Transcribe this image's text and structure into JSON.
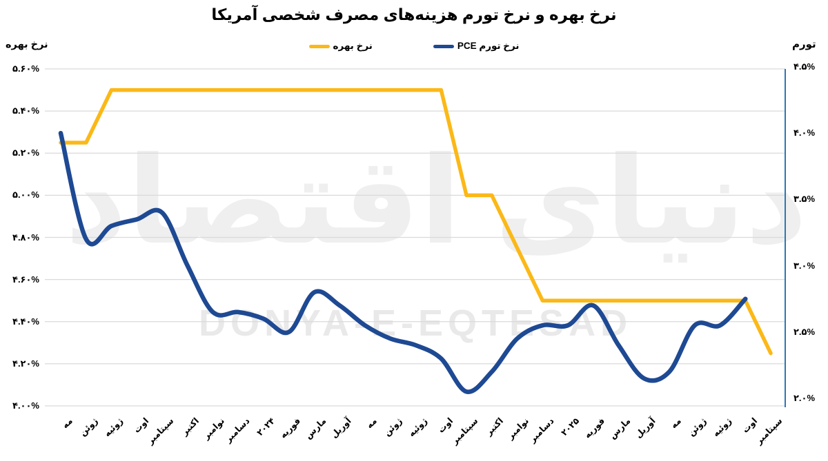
{
  "watermark": {
    "fa": "دنیای اقتصاد",
    "en": "DONYA-E-EQTESAD"
  },
  "colors": {
    "interest_rate_line": "#FBB817",
    "pce_line": "#1E4993",
    "gridline": "#D9D9D9",
    "right_axis_line": "#2E75B6",
    "text": "#000000",
    "watermark": "#ECECEC"
  },
  "chart_data": {
    "type": "line",
    "title": "نرخ بهره و نرخ تورم هزینه‌های مصرف شخصی آمریکا",
    "legend_position": "top",
    "grid": "horizontal",
    "categories": [
      "مه",
      "ژوئن",
      "ژوئیه",
      "اوت",
      "سپتامبر",
      "اکتبر",
      "نوامبر",
      "دسامبر",
      "۲۰۲۴",
      "فوریه",
      "مارس",
      "آوریل",
      "مه",
      "ژوئن",
      "ژوئیه",
      "اوت",
      "سپتامبر",
      "اکتبر",
      "نوامبر",
      "دسامبر",
      "۲۰۲۵",
      "فوریه",
      "مارس",
      "آوریل",
      "مه",
      "ژوئن",
      "ژوئیه",
      "اوت",
      "سپتامبر"
    ],
    "series": [
      {
        "name": "نرخ بهره",
        "axis": "left",
        "color": "#FBB817",
        "line": "straight",
        "values": [
          5.25,
          5.25,
          5.5,
          5.5,
          5.5,
          5.5,
          5.5,
          5.5,
          5.5,
          5.5,
          5.5,
          5.5,
          5.5,
          5.5,
          5.5,
          5.5,
          5.0,
          5.0,
          4.75,
          4.5,
          4.5,
          4.5,
          4.5,
          4.5,
          4.5,
          4.5,
          4.5,
          4.5,
          4.25
        ]
      },
      {
        "name": "نرخ تورم PCE",
        "axis": "right",
        "color": "#1E4993",
        "line": "smooth",
        "values": [
          4.0,
          3.2,
          3.3,
          3.35,
          3.4,
          3.0,
          2.65,
          2.65,
          2.6,
          2.5,
          2.8,
          2.7,
          2.55,
          2.45,
          2.4,
          2.3,
          2.05,
          2.2,
          2.45,
          2.55,
          2.55,
          2.7,
          2.4,
          2.15,
          2.2,
          2.55,
          2.55,
          2.75,
          null
        ]
      }
    ],
    "left_axis": {
      "title": "نرخ بهره",
      "range": [
        4.0,
        5.6
      ],
      "tick_values": [
        5.6,
        5.4,
        5.2,
        5.0,
        4.8,
        4.6,
        4.4,
        4.2,
        4.0
      ],
      "tick_labels": [
        "۵.۶۰%",
        "۵.۴۰%",
        "۵.۲۰%",
        "۵.۰۰%",
        "۴.۸۰%",
        "۴.۶۰%",
        "۴.۴۰%",
        "۴.۲۰%",
        "۴.۰۰%"
      ]
    },
    "right_axis": {
      "title": "تورم",
      "range": [
        2.0,
        4.5
      ],
      "tick_values": [
        4.5,
        4.0,
        3.5,
        3.0,
        2.5,
        2.0
      ],
      "tick_labels": [
        "۴.۵%",
        "۴.۰%",
        "۳.۵%",
        "۳.۰%",
        "۲.۵%",
        "۲.۰%"
      ]
    }
  }
}
